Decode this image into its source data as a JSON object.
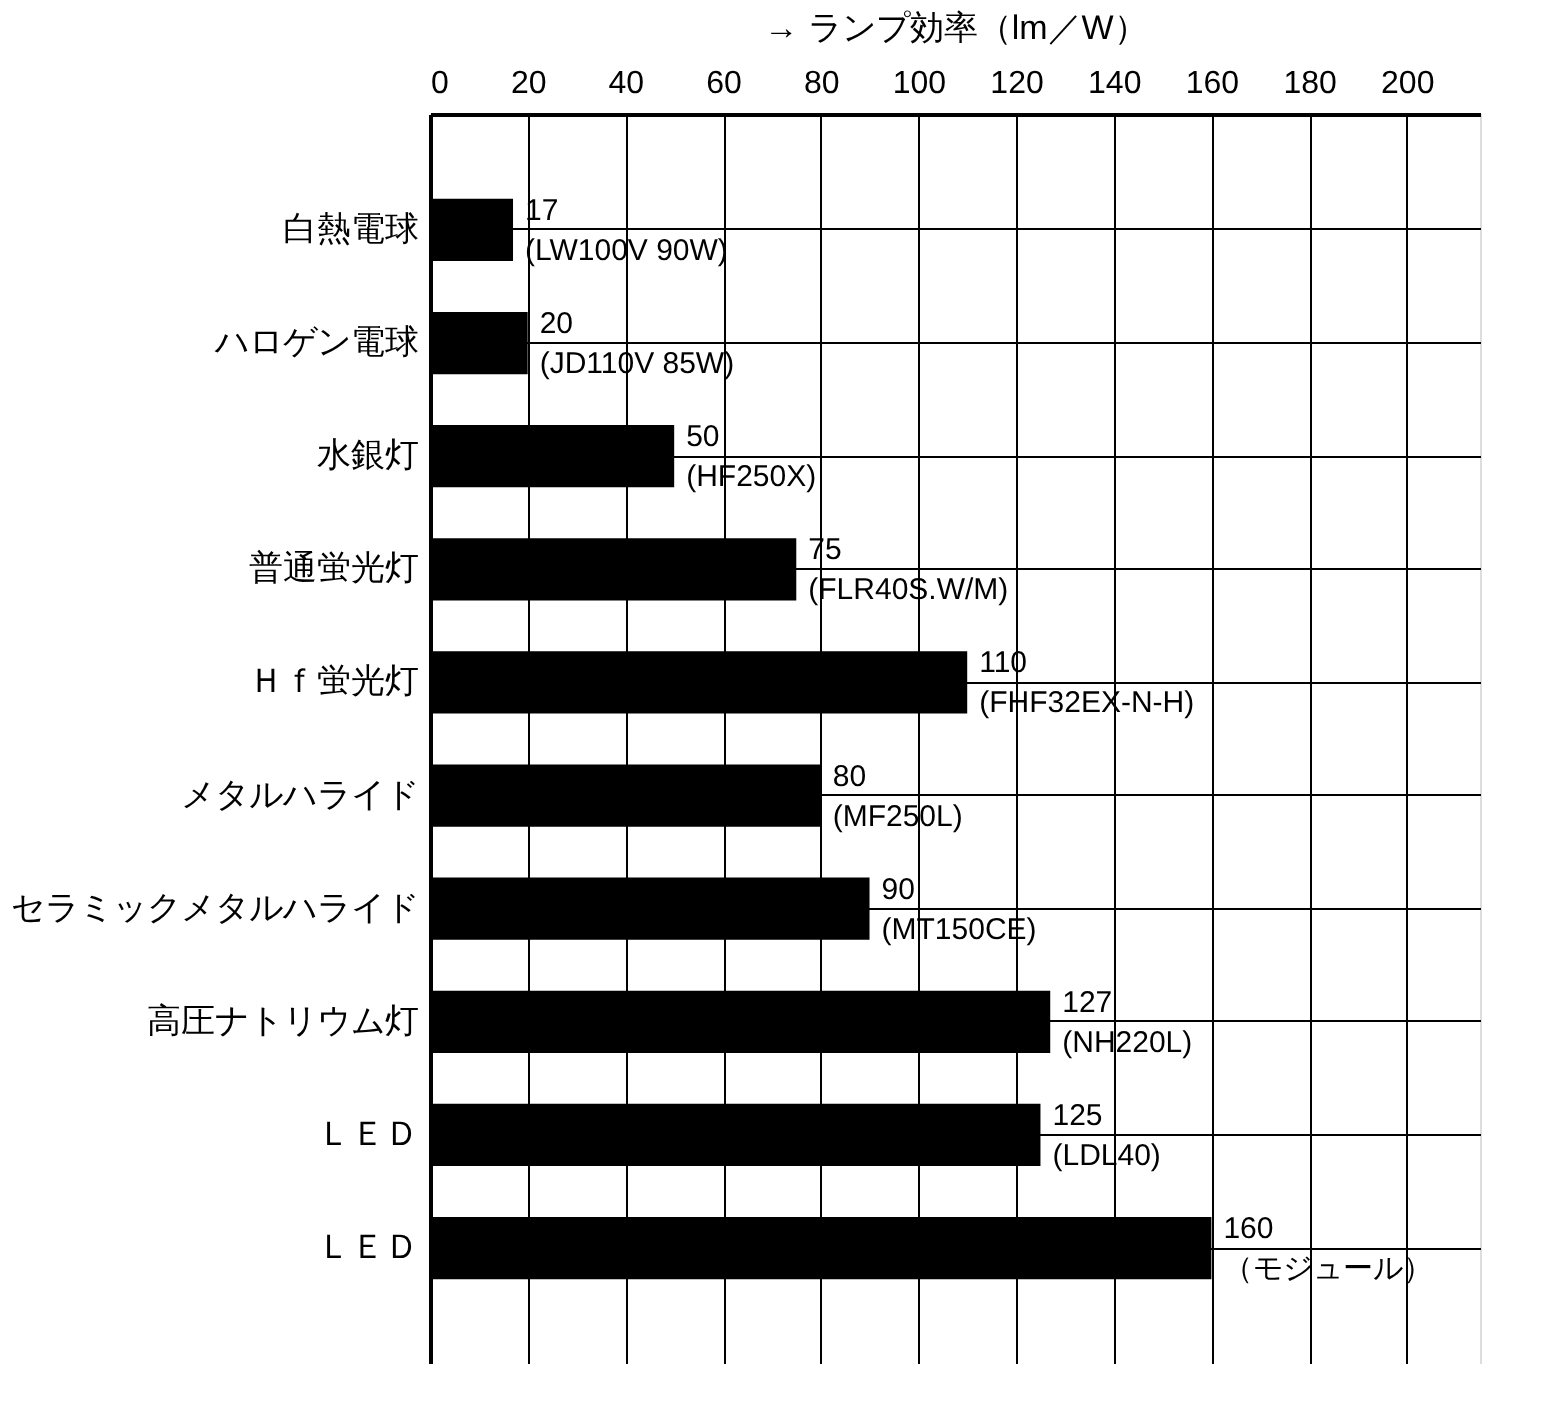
{
  "chart_data": {
    "type": "bar",
    "orientation": "horizontal",
    "xlabel": "→ ランプ効率（lm／W）",
    "categories": [
      "白熱電球",
      "ハロゲン電球",
      "水銀灯",
      "普通蛍光灯",
      "Ｈｆ蛍光灯",
      "メタルハライド",
      "セラミックメタルハライド",
      "高圧ナトリウム灯",
      "ＬＥＤ",
      "ＬＥＤ"
    ],
    "values": [
      17,
      20,
      50,
      75,
      110,
      80,
      90,
      127,
      125,
      160
    ],
    "value_labels": [
      "17\n(LW100V 90W)",
      "20\n(JD110V 85W)",
      "50\n(HF250X)",
      "75\n(FLR40S.W/M)",
      "110\n(FHF32EX-N-H)",
      "80\n(MF250L)",
      "90\n(MT150CE)",
      "127\n(NH220L)",
      "125\n(LDL40)",
      "160\n（モジュール）"
    ],
    "color": "#000000",
    "xlim": [
      0,
      215
    ],
    "xticks": [
      0,
      20,
      40,
      60,
      80,
      100,
      120,
      140,
      160,
      180,
      200
    ],
    "grid": true,
    "legend": false
  }
}
